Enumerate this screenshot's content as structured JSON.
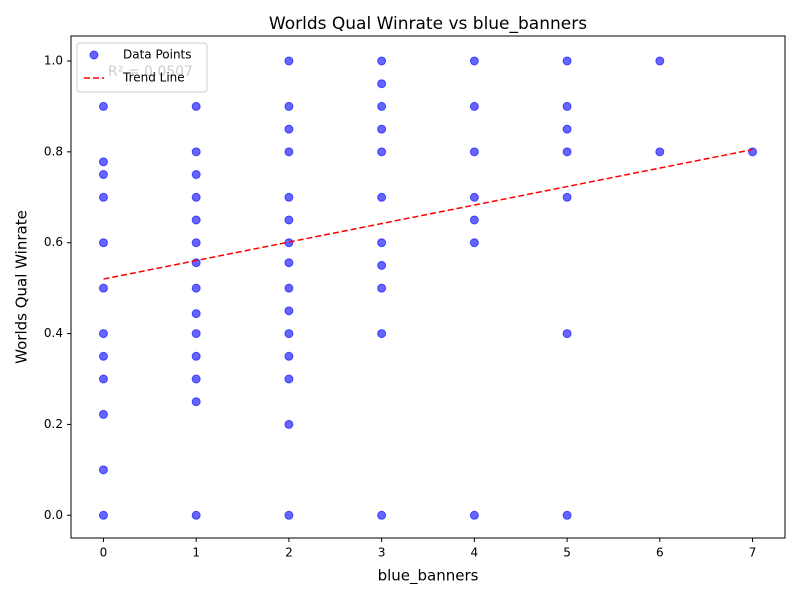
{
  "chart_data": {
    "type": "scatter",
    "title": "Worlds Qual Winrate vs blue_banners",
    "x_label": "blue_banners",
    "y_label": "Worlds Qual Winrate",
    "annotation": "R² = 0.0507",
    "xlim": [
      -0.35,
      7.35
    ],
    "ylim": [
      -0.05,
      1.055
    ],
    "xticks": [
      0,
      1,
      2,
      3,
      4,
      5,
      6,
      7
    ],
    "yticks": [
      {
        "value": 0,
        "label": "0.0"
      },
      0.2,
      0.4,
      0.6,
      0.8,
      {
        "value": 1,
        "label": "1.0"
      }
    ],
    "legend": "upper left",
    "series": [
      {
        "name": "Data Points",
        "color": "blue",
        "x": [
          0,
          0,
          0,
          0,
          0,
          0,
          0,
          0,
          0,
          0,
          0,
          0,
          1,
          1,
          1,
          1,
          1,
          1,
          1,
          1,
          1,
          1,
          1,
          1,
          1,
          1,
          2,
          2,
          2,
          2,
          2,
          2,
          2,
          2,
          2,
          2,
          2,
          2,
          2,
          2,
          2,
          3,
          3,
          3,
          3,
          3,
          3,
          3,
          3,
          3,
          3,
          3,
          4,
          4,
          4,
          4,
          4,
          4,
          4,
          5,
          5,
          5,
          5,
          5,
          5,
          5,
          6,
          6,
          7
        ],
        "values": [
          0.9,
          0.778,
          0.75,
          0.7,
          0.6,
          0.5,
          0.4,
          0.35,
          0.3,
          0.222,
          0.1,
          0,
          0.9,
          0.8,
          0.75,
          0.7,
          0.65,
          0.6,
          0.556,
          0.5,
          0.444,
          0.4,
          0.35,
          0.3,
          0.25,
          0,
          1,
          0.9,
          0.85,
          0.8,
          0.7,
          0.65,
          0.6,
          0.556,
          0.5,
          0.45,
          0.4,
          0.35,
          0.3,
          0.2,
          0,
          1,
          0.95,
          0.9,
          0.85,
          0.8,
          0.7,
          0.6,
          0.55,
          0.5,
          0.4,
          0,
          1,
          0.9,
          0.8,
          0.7,
          0.65,
          0.6,
          0,
          1,
          0.9,
          0.85,
          0.8,
          0.7,
          0.4,
          0,
          1,
          0.8,
          0.8
        ]
      },
      {
        "name": "Trend Line",
        "color": "red",
        "x": [
          0,
          7
        ],
        "values": [
          0.52,
          0.805
        ]
      }
    ]
  }
}
